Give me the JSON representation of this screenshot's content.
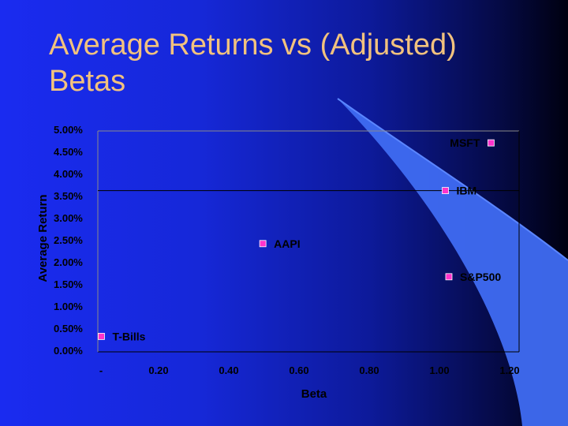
{
  "slide": {
    "title": "Average Returns vs (Adjusted) Betas",
    "colors": {
      "title": "#f2c27e",
      "marker": "#ff33cc",
      "swoosh": "#3f6cf2"
    }
  },
  "chart_data": {
    "type": "scatter",
    "title": "",
    "xlabel": "Beta",
    "ylabel": "Average Return",
    "xlim": [
      0,
      1.2
    ],
    "ylim": [
      0,
      0.05
    ],
    "x_tick_labels": [
      "-",
      "0.20",
      "0.40",
      "0.60",
      "0.80",
      "1.00",
      "1.20"
    ],
    "x_ticks": [
      0,
      0.2,
      0.4,
      0.6,
      0.8,
      1.0,
      1.2
    ],
    "y_tick_labels": [
      "0.00%",
      "0.50%",
      "1.00%",
      "1.50%",
      "2.00%",
      "2.50%",
      "3.00%",
      "3.50%",
      "4.00%",
      "4.50%",
      "5.00%"
    ],
    "y_ticks": [
      0,
      0.005,
      0.01,
      0.015,
      0.02,
      0.025,
      0.03,
      0.035,
      0.04,
      0.045,
      0.05
    ],
    "grid": false,
    "marker_color": "#ff33cc",
    "points": [
      {
        "label": "T-Bills",
        "x": 0.01,
        "y": 0.0035
      },
      {
        "label": "AAPI",
        "x": 0.47,
        "y": 0.0245
      },
      {
        "label": "IBM",
        "x": 0.99,
        "y": 0.0365
      },
      {
        "label": "S&P500",
        "x": 1.0,
        "y": 0.017
      },
      {
        "label": "MSFT",
        "x": 1.12,
        "y": 0.0473
      }
    ]
  }
}
